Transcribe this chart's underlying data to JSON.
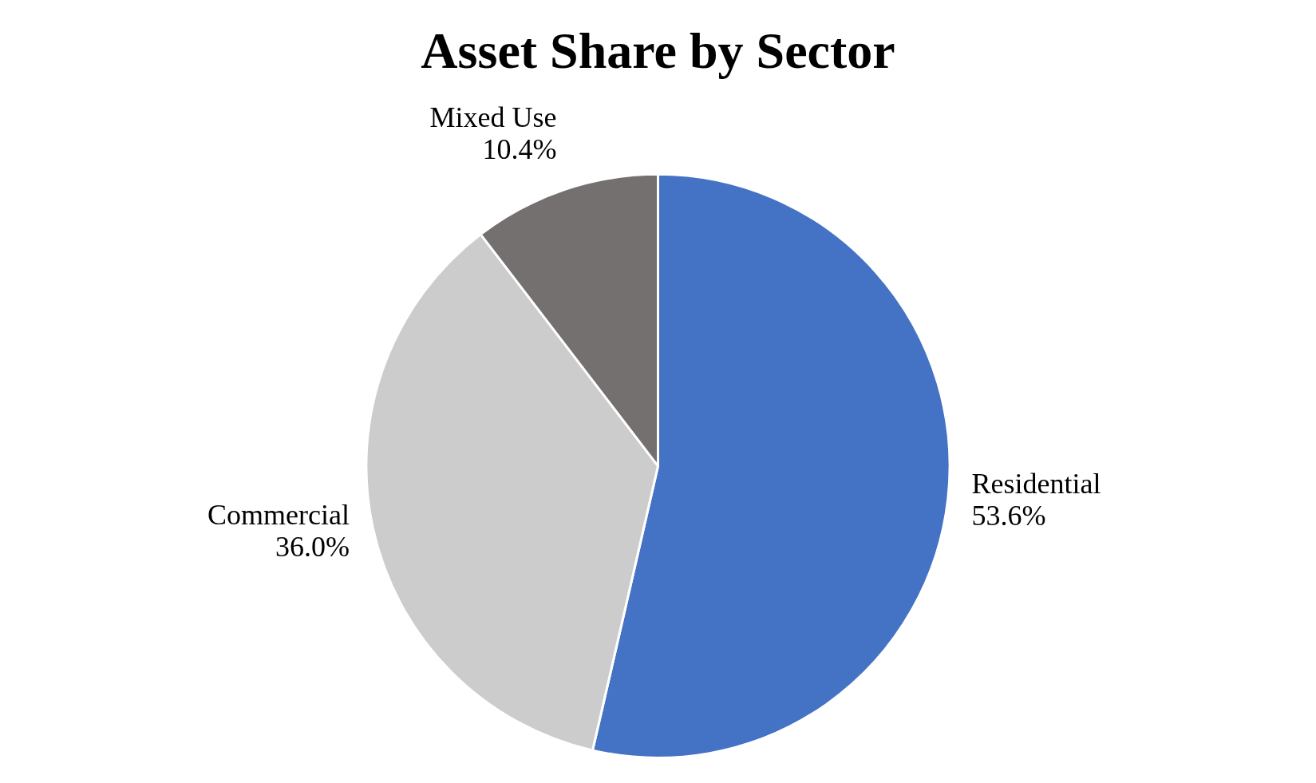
{
  "chart_data": {
    "type": "pie",
    "title": "Asset Share by Sector",
    "categories": [
      "Residential",
      "Commercial",
      "Mixed Use"
    ],
    "values": [
      53.6,
      36.0,
      10.4
    ],
    "value_labels": [
      "53.6%",
      "36.0%",
      "10.4%"
    ],
    "colors": [
      "#4472c4",
      "#cdcccd",
      "#747070"
    ],
    "legend": false
  }
}
